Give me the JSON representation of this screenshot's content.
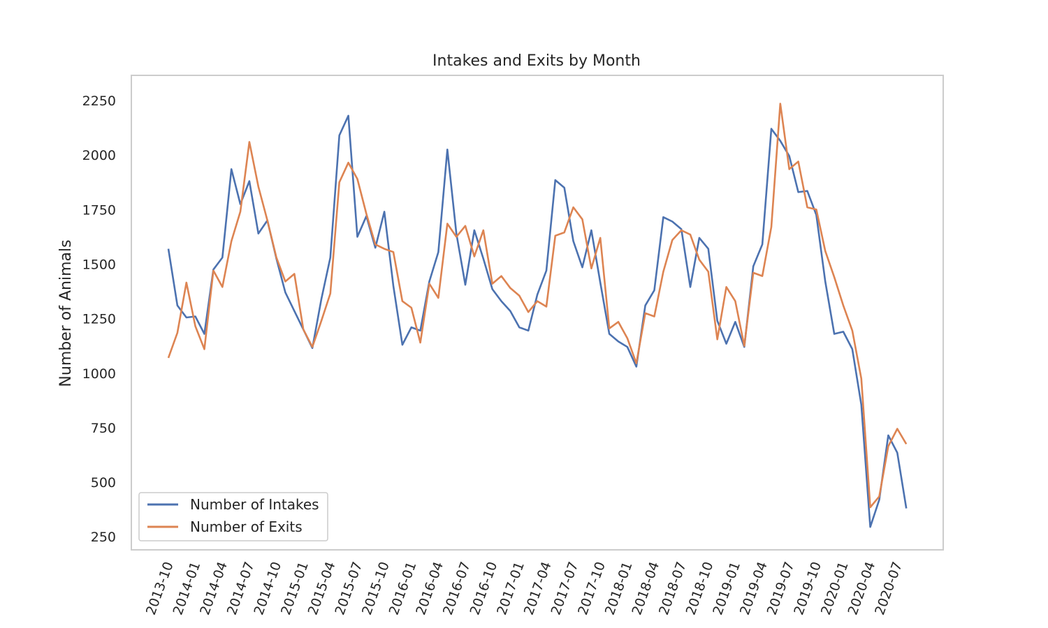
{
  "chart_data": {
    "type": "line",
    "title": "Intakes and Exits by Month",
    "xlabel": "",
    "ylabel": "Number of Animals",
    "x": [
      "2013-10",
      "2013-11",
      "2013-12",
      "2014-01",
      "2014-02",
      "2014-03",
      "2014-04",
      "2014-05",
      "2014-06",
      "2014-07",
      "2014-08",
      "2014-09",
      "2014-10",
      "2014-11",
      "2014-12",
      "2015-01",
      "2015-02",
      "2015-03",
      "2015-04",
      "2015-05",
      "2015-06",
      "2015-07",
      "2015-08",
      "2015-09",
      "2015-10",
      "2015-11",
      "2015-12",
      "2016-01",
      "2016-02",
      "2016-03",
      "2016-04",
      "2016-05",
      "2016-06",
      "2016-07",
      "2016-08",
      "2016-09",
      "2016-10",
      "2016-11",
      "2016-12",
      "2017-01",
      "2017-02",
      "2017-03",
      "2017-04",
      "2017-05",
      "2017-06",
      "2017-07",
      "2017-08",
      "2017-09",
      "2017-10",
      "2017-11",
      "2017-12",
      "2018-01",
      "2018-02",
      "2018-03",
      "2018-04",
      "2018-05",
      "2018-06",
      "2018-07",
      "2018-08",
      "2018-09",
      "2018-10",
      "2018-11",
      "2018-12",
      "2019-01",
      "2019-02",
      "2019-03",
      "2019-04",
      "2019-05",
      "2019-06",
      "2019-07",
      "2019-08",
      "2019-09",
      "2019-10",
      "2019-11",
      "2019-12",
      "2020-01",
      "2020-02",
      "2020-03",
      "2020-04",
      "2020-05",
      "2020-06",
      "2020-07",
      "2020-08"
    ],
    "x_ticks": [
      "2013-10",
      "2014-01",
      "2014-04",
      "2014-07",
      "2014-10",
      "2015-01",
      "2015-04",
      "2015-07",
      "2015-10",
      "2016-01",
      "2016-04",
      "2016-07",
      "2016-10",
      "2017-01",
      "2017-04",
      "2017-07",
      "2017-10",
      "2018-01",
      "2018-04",
      "2018-07",
      "2018-10",
      "2019-01",
      "2019-04",
      "2019-07",
      "2019-10",
      "2020-01",
      "2020-04",
      "2020-07"
    ],
    "ylim": [
      190,
      2365
    ],
    "y_ticks": [
      250,
      500,
      750,
      1000,
      1250,
      1500,
      1750,
      2000,
      2250
    ],
    "grid": false,
    "legend_position": "lower-left",
    "series": [
      {
        "name": "Number of Intakes",
        "color": "#4c72b0",
        "values": [
          1570,
          1310,
          1255,
          1260,
          1180,
          1475,
          1530,
          1935,
          1775,
          1880,
          1640,
          1700,
          1525,
          1370,
          1285,
          1200,
          1115,
          1340,
          1530,
          2090,
          2180,
          1625,
          1720,
          1575,
          1740,
          1400,
          1130,
          1210,
          1195,
          1420,
          1555,
          2025,
          1640,
          1405,
          1655,
          1525,
          1385,
          1330,
          1285,
          1210,
          1195,
          1360,
          1470,
          1885,
          1850,
          1605,
          1485,
          1655,
          1415,
          1180,
          1145,
          1120,
          1030,
          1310,
          1380,
          1715,
          1695,
          1660,
          1395,
          1620,
          1570,
          1240,
          1135,
          1235,
          1120,
          1490,
          1590,
          2120,
          2065,
          1995,
          1830,
          1835,
          1725,
          1420,
          1180,
          1190,
          1110,
          855,
          295,
          420,
          715,
          635,
          380
        ]
      },
      {
        "name": "Number of Exits",
        "color": "#dd8452",
        "values": [
          1070,
          1185,
          1415,
          1215,
          1110,
          1470,
          1395,
          1605,
          1740,
          2060,
          1855,
          1700,
          1530,
          1420,
          1455,
          1200,
          1120,
          1240,
          1365,
          1875,
          1965,
          1890,
          1730,
          1590,
          1570,
          1555,
          1330,
          1300,
          1140,
          1410,
          1345,
          1685,
          1625,
          1675,
          1535,
          1655,
          1410,
          1445,
          1390,
          1355,
          1280,
          1330,
          1305,
          1630,
          1645,
          1760,
          1705,
          1480,
          1620,
          1205,
          1235,
          1160,
          1045,
          1275,
          1260,
          1465,
          1610,
          1655,
          1635,
          1520,
          1465,
          1155,
          1395,
          1330,
          1125,
          1460,
          1445,
          1670,
          2235,
          1935,
          1970,
          1760,
          1750,
          1560,
          1440,
          1310,
          1195,
          975,
          385,
          435,
          665,
          745,
          675
        ]
      }
    ]
  }
}
